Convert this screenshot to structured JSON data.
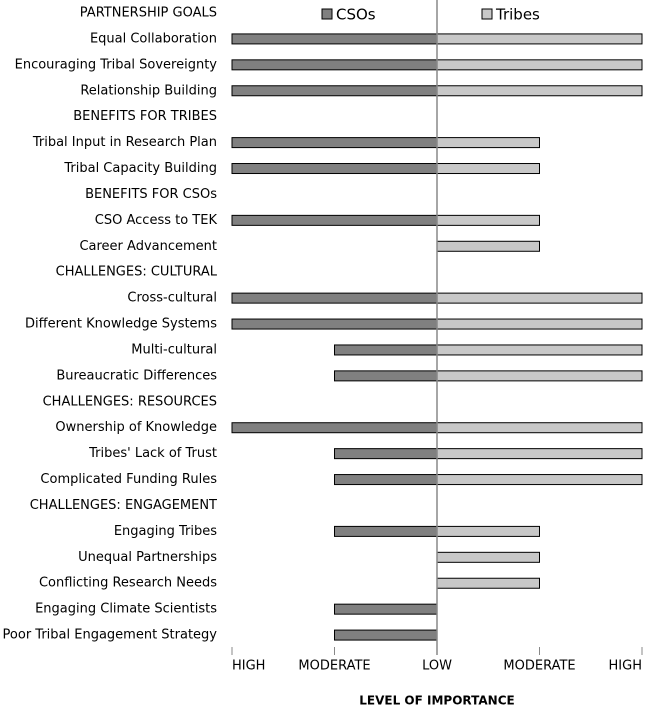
{
  "chart_data": {
    "type": "diverging_bar",
    "xlabel": "LEVEL OF IMPORTANCE",
    "categories": [
      "PARTNERSHIP GOALS",
      "Equal Collaboration",
      "Encouraging Tribal Sovereignty",
      "Relationship Building",
      "BENEFITS FOR TRIBES",
      "Tribal Input in Research Plan",
      "Tribal Capacity Building",
      "BENEFITS FOR CSOs",
      "CSO Access to TEK",
      "Career Advancement",
      "CHALLENGES: CULTURAL",
      "Cross-cultural",
      "Different Knowledge Systems",
      "Multi-cultural",
      "Bureaucratic Differences",
      "CHALLENGES: RESOURCES",
      "Ownership of Knowledge",
      "Tribes' Lack of Trust",
      "Complicated Funding Rules",
      "CHALLENGES: ENGAGEMENT",
      "Engaging Tribes",
      "Unequal Partnerships",
      "Conflicting Research Needs",
      "Engaging Climate Scientists",
      "Poor Tribal Engagement Strategy"
    ],
    "series": [
      {
        "name": "CSOs",
        "color": "#808080",
        "values": [
          null,
          -2,
          -2,
          -2,
          null,
          -2,
          -2,
          null,
          -2,
          null,
          null,
          -2,
          -2,
          -1,
          -1,
          null,
          -2,
          -1,
          -1,
          null,
          -1,
          null,
          null,
          -1,
          -1
        ]
      },
      {
        "name": "Tribes",
        "color": "#c8c8c8",
        "values": [
          null,
          2,
          2,
          2,
          null,
          1,
          1,
          null,
          1,
          1,
          null,
          2,
          2,
          2,
          2,
          null,
          2,
          2,
          2,
          null,
          1,
          1,
          1,
          null,
          null
        ]
      }
    ],
    "xlim": [
      -2,
      2
    ],
    "xticks": [
      {
        "value": -2,
        "label": "HIGH"
      },
      {
        "value": -1,
        "label": "MODERATE"
      },
      {
        "value": 0,
        "label": "LOW"
      },
      {
        "value": 1,
        "label": "MODERATE"
      },
      {
        "value": 2,
        "label": "HIGH"
      }
    ],
    "legend": "top"
  }
}
